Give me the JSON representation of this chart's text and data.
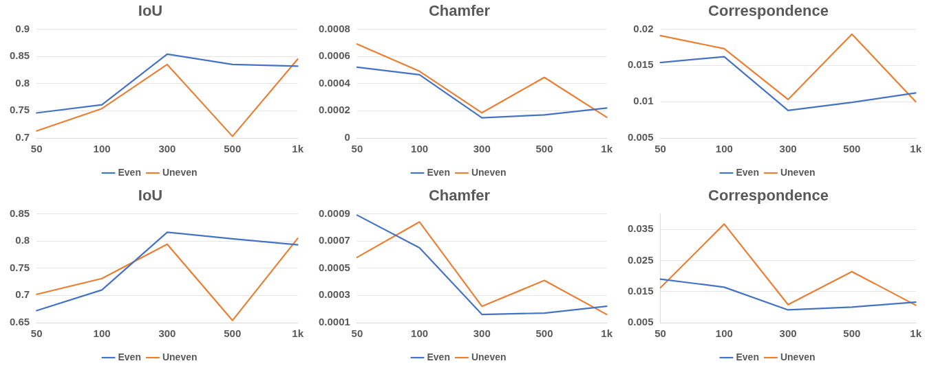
{
  "chart_data": [
    {
      "type": "line",
      "title": "IoU",
      "categories": [
        "50",
        "100",
        "300",
        "500",
        "1k"
      ],
      "ylim": [
        0.7,
        0.9
      ],
      "yticks": [
        0.7,
        0.75,
        0.8,
        0.85,
        0.9
      ],
      "grid": "y",
      "legend": "bottom",
      "marker": "none",
      "line_style": "solid",
      "series": [
        {
          "name": "Even",
          "color": "#4472c4",
          "values": [
            0.746,
            0.761,
            0.854,
            0.835,
            0.832
          ]
        },
        {
          "name": "Uneven",
          "color": "#ed7d31",
          "values": [
            0.713,
            0.754,
            0.835,
            0.703,
            0.845
          ]
        }
      ]
    },
    {
      "type": "line",
      "title": "Chamfer",
      "categories": [
        "50",
        "100",
        "300",
        "500",
        "1k"
      ],
      "ylim": [
        0,
        0.0008
      ],
      "yticks": [
        0,
        0.0002,
        0.0004,
        0.0006,
        0.0008
      ],
      "grid": "y",
      "legend": "bottom",
      "marker": "none",
      "line_style": "solid",
      "series": [
        {
          "name": "Even",
          "color": "#4472c4",
          "values": [
            0.00052,
            0.000465,
            0.000148,
            0.00017,
            0.00022
          ]
        },
        {
          "name": "Uneven",
          "color": "#ed7d31",
          "values": [
            0.00069,
            0.00049,
            0.000185,
            0.000445,
            0.000152
          ]
        }
      ]
    },
    {
      "type": "line",
      "title": "Correspondence",
      "categories": [
        "50",
        "100",
        "300",
        "500",
        "1k"
      ],
      "ylim": [
        0.005,
        0.02
      ],
      "yticks": [
        0.005,
        0.01,
        0.015,
        0.02
      ],
      "grid": "y",
      "legend": "bottom",
      "marker": "none",
      "line_style": "solid",
      "series": [
        {
          "name": "Even",
          "color": "#4472c4",
          "values": [
            0.0154,
            0.0162,
            0.0088,
            0.0099,
            0.0112
          ]
        },
        {
          "name": "Uneven",
          "color": "#ed7d31",
          "values": [
            0.0191,
            0.0173,
            0.0103,
            0.0193,
            0.01
          ]
        }
      ]
    },
    {
      "type": "line",
      "title": "IoU",
      "categories": [
        "50",
        "100",
        "300",
        "500",
        "1k"
      ],
      "ylim": [
        0.65,
        0.85
      ],
      "yticks": [
        0.65,
        0.7,
        0.75,
        0.8,
        0.85
      ],
      "grid": "y",
      "legend": "bottom",
      "marker": "none",
      "line_style": "solid",
      "series": [
        {
          "name": "Even",
          "color": "#4472c4",
          "values": [
            0.672,
            0.71,
            0.816,
            0.804,
            0.793
          ]
        },
        {
          "name": "Uneven",
          "color": "#ed7d31",
          "values": [
            0.702,
            0.731,
            0.794,
            0.654,
            0.805
          ]
        }
      ]
    },
    {
      "type": "line",
      "title": "Chamfer",
      "categories": [
        "50",
        "100",
        "300",
        "500",
        "1k"
      ],
      "ylim": [
        0.0001,
        0.0009
      ],
      "yticks": [
        0.0001,
        0.0003,
        0.0005,
        0.0007,
        0.0009
      ],
      "grid": "y",
      "legend": "bottom",
      "marker": "none",
      "line_style": "solid",
      "series": [
        {
          "name": "Even",
          "color": "#4472c4",
          "values": [
            0.00089,
            0.00065,
            0.00016,
            0.00017,
            0.00022
          ]
        },
        {
          "name": "Uneven",
          "color": "#ed7d31",
          "values": [
            0.00058,
            0.00084,
            0.00022,
            0.00041,
            0.00016
          ]
        }
      ]
    },
    {
      "type": "line",
      "title": "Correspondence",
      "categories": [
        "50",
        "100",
        "300",
        "500",
        "1k"
      ],
      "ylim": [
        0.005,
        0.04
      ],
      "yticks": [
        0.005,
        0.015,
        0.025,
        0.035
      ],
      "grid": "y",
      "legend": "bottom",
      "marker": "none",
      "line_style": "solid",
      "series": [
        {
          "name": "Even",
          "color": "#4472c4",
          "values": [
            0.019,
            0.0164,
            0.0091,
            0.01,
            0.0116
          ]
        },
        {
          "name": "Uneven",
          "color": "#ed7d31",
          "values": [
            0.0162,
            0.0367,
            0.0108,
            0.0214,
            0.0106
          ]
        }
      ]
    }
  ]
}
